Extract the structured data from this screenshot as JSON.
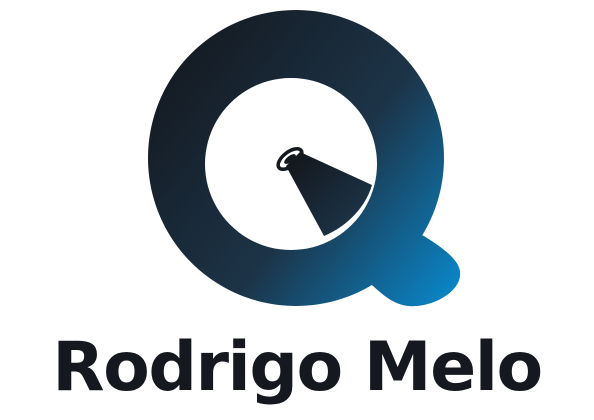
{
  "brand": {
    "name": "Rodrigo Melo",
    "text_color": "#15191f",
    "gradient_dark": "#141920",
    "gradient_mid": "#1c3448",
    "gradient_light": "#0a86c8",
    "icon_name": "spotlight-q-logo-icon"
  }
}
